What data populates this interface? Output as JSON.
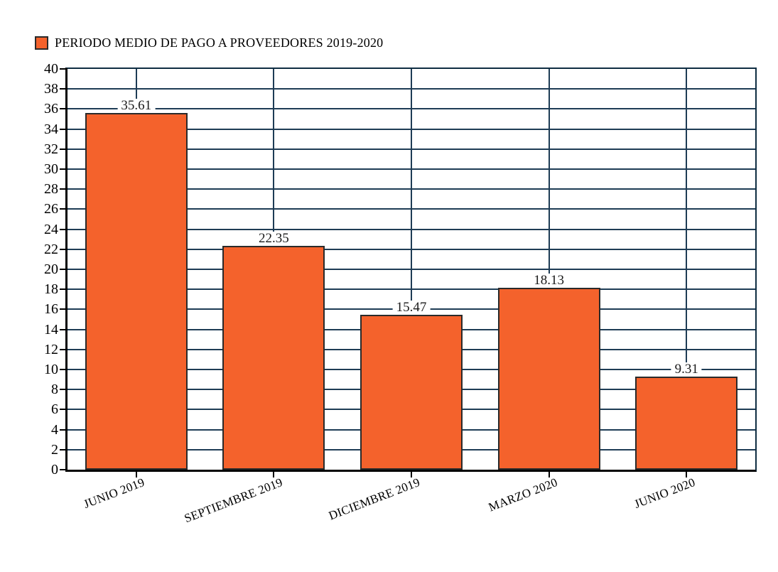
{
  "legend": {
    "label": "PERIODO MEDIO DE PAGO A PROVEEDORES 2019-2020",
    "marker": "orange-square-icon"
  },
  "chart_data": {
    "type": "bar",
    "title": "PERIODO MEDIO DE PAGO A PROVEEDORES 2019-2020",
    "categories": [
      "JUNIO 2019",
      "SEPTIEMBRE 2019",
      "DICIEMBRE 2019",
      "MARZO 2020",
      "JUNIO 2020"
    ],
    "values": [
      35.61,
      22.35,
      15.47,
      18.13,
      9.31
    ],
    "value_labels": [
      "35.61",
      "22.35",
      "15.47",
      "18.13",
      "9.31"
    ],
    "yticks": [
      0,
      2,
      4,
      6,
      8,
      10,
      12,
      14,
      16,
      18,
      20,
      22,
      24,
      26,
      28,
      30,
      32,
      34,
      36,
      38,
      40
    ],
    "ylim": [
      0,
      40
    ],
    "xlabel": "",
    "ylabel": "",
    "grid": {
      "horizontal": true,
      "vertical_at_category_centers": true
    },
    "legend_position": "top-left",
    "category_label_rotation_deg": -21,
    "colors": {
      "bar_fill": "#f4622c",
      "bar_border": "#2a2a2a",
      "gridline": "#1e3c55",
      "axis": "#000000",
      "frame": "#0f2d42",
      "text": "#000000",
      "background": "#ffffff"
    }
  }
}
